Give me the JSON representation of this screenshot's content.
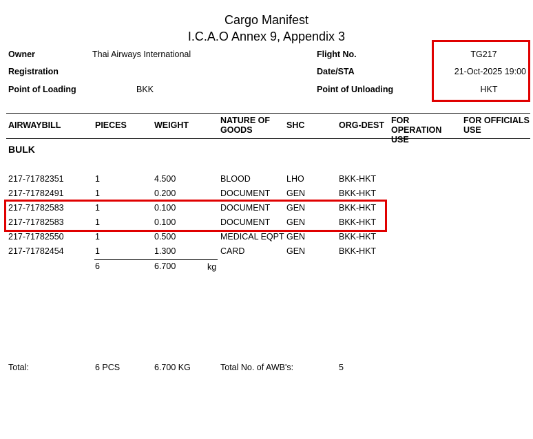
{
  "title": "Cargo Manifest",
  "subtitle": "I.C.A.O Annex 9, Appendix 3",
  "header": {
    "owner_label": "Owner",
    "owner": "Thai Airways International",
    "registration_label": "Registration",
    "registration": "",
    "pol_label": "Point of Loading",
    "pol": "BKK",
    "flight_label": "Flight No.",
    "flight": "TG217",
    "date_label": "Date/STA",
    "date": "21-Oct-2025 19:00",
    "pou_label": "Point of Unloading",
    "pou": "HKT"
  },
  "columns": [
    "AIRWAYBILL",
    "PIECES",
    "WEIGHT",
    "NATURE OF GOODS",
    "SHC",
    "ORG-DEST",
    "FOR OPERATION USE",
    "FOR OFFICIALS USE"
  ],
  "section": "BULK",
  "rows": [
    [
      "217-71782351",
      "1",
      "4.500",
      "BLOOD",
      "LHO",
      "BKK-HKT"
    ],
    [
      "217-71782491",
      "1",
      "0.200",
      "DOCUMENT",
      "GEN",
      "BKK-HKT"
    ],
    [
      "217-71782583",
      "1",
      "0.100",
      "DOCUMENT",
      "GEN",
      "BKK-HKT"
    ],
    [
      "217-71782583",
      "1",
      "0.100",
      "DOCUMENT",
      "GEN",
      "BKK-HKT"
    ],
    [
      "217-71782550",
      "1",
      "0.500",
      "MEDICAL EQPT",
      "GEN",
      "BKK-HKT"
    ],
    [
      "217-71782454",
      "1",
      "1.300",
      "CARD",
      "GEN",
      "BKK-HKT"
    ]
  ],
  "subtotal": {
    "pieces": "6",
    "weight": "6.700",
    "unit": "kg"
  },
  "total": {
    "label": "Total:",
    "pieces": "6 PCS",
    "weight": "6.700 KG",
    "awb_label": "Total No. of AWB's:",
    "awb": "5"
  },
  "highlight_color": "#e00000"
}
